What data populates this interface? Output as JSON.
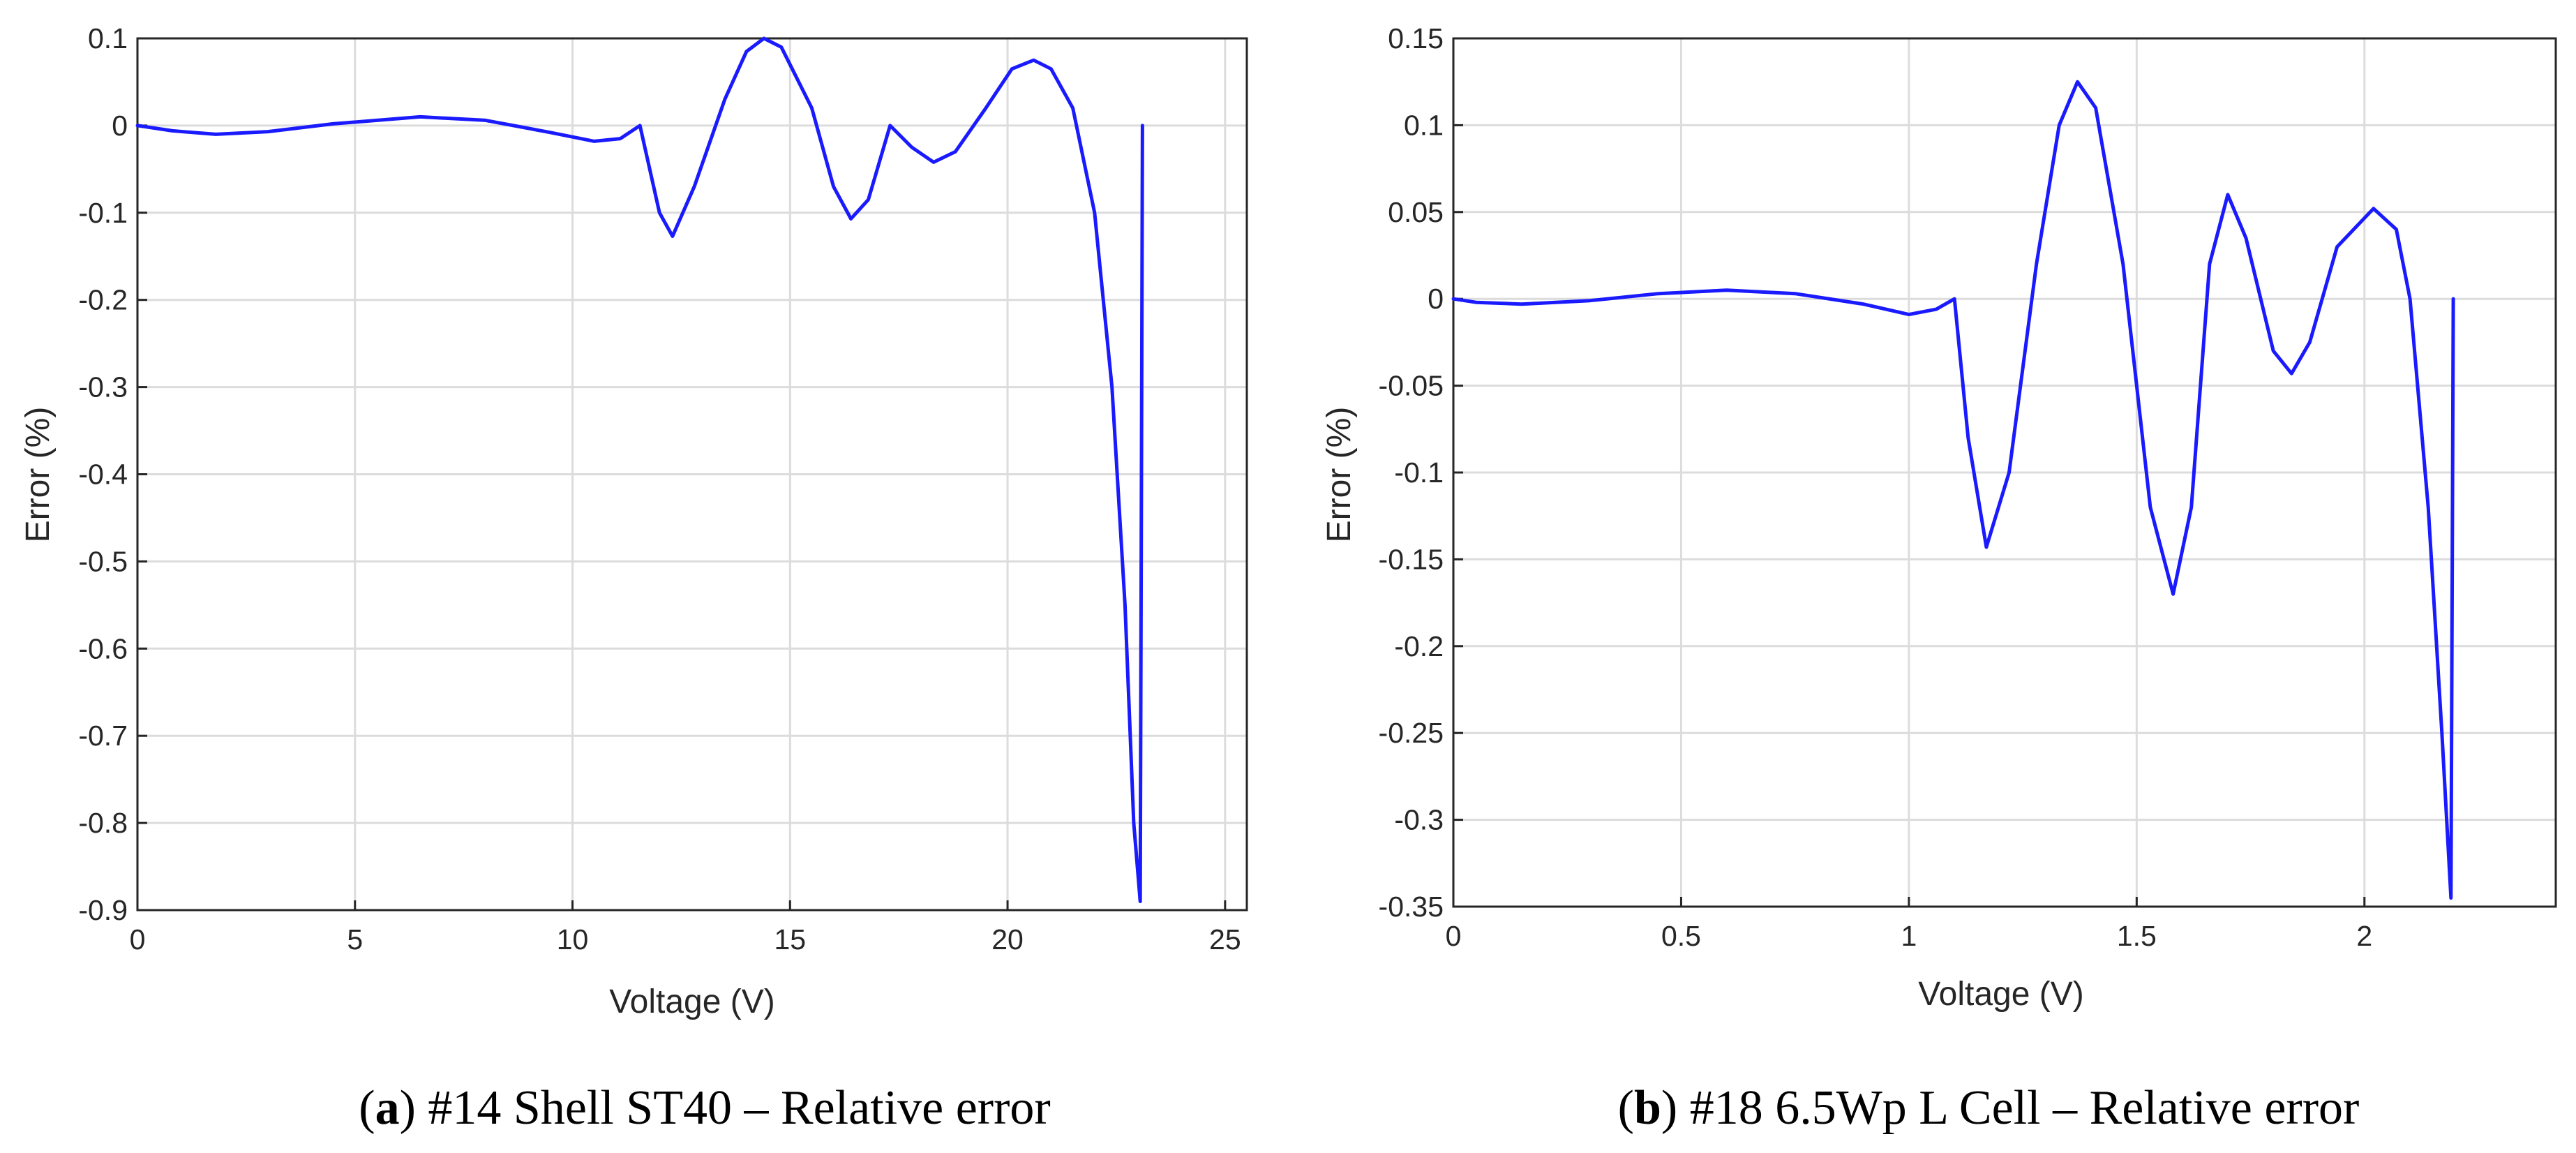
{
  "chart_data": [
    {
      "type": "line",
      "caption_letter": "a",
      "caption_text": "#14 Shell ST40 – Relative error",
      "xlabel": "Voltage (V)",
      "ylabel": "Error (%)",
      "xlim": [
        0,
        25.5
      ],
      "ylim": [
        -0.9,
        0.1
      ],
      "xticks": [
        0,
        5,
        10,
        15,
        20,
        25
      ],
      "xtick_labels": [
        "0",
        "5",
        "10",
        "15",
        "20",
        "25"
      ],
      "yticks": [
        0.1,
        0,
        -0.1,
        -0.2,
        -0.3,
        -0.4,
        -0.5,
        -0.6,
        -0.7,
        -0.8,
        -0.9
      ],
      "ytick_labels": [
        "0.1",
        "0",
        "-0.1",
        "-0.2",
        "-0.3",
        "-0.4",
        "-0.5",
        "-0.6",
        "-0.7",
        "-0.8",
        "-0.9"
      ],
      "grid": true,
      "line_color": "#1a1aff",
      "series": [
        {
          "name": "Relative error",
          "points": [
            [
              0,
              0
            ],
            [
              0.8,
              -0.006
            ],
            [
              1.8,
              -0.01
            ],
            [
              3,
              -0.007
            ],
            [
              4.5,
              0.002
            ],
            [
              6.5,
              0.01
            ],
            [
              8,
              0.006
            ],
            [
              9.5,
              -0.008
            ],
            [
              10.5,
              -0.018
            ],
            [
              11.1,
              -0.015
            ],
            [
              11.55,
              0
            ],
            [
              12,
              -0.1
            ],
            [
              12.3,
              -0.127
            ],
            [
              12.8,
              -0.07
            ],
            [
              13.5,
              0.03
            ],
            [
              14.0,
              0.085
            ],
            [
              14.4,
              0.1
            ],
            [
              14.8,
              0.09
            ],
            [
              15.5,
              0.02
            ],
            [
              16.0,
              -0.07
            ],
            [
              16.4,
              -0.107
            ],
            [
              16.8,
              -0.085
            ],
            [
              17.3,
              0
            ],
            [
              17.8,
              -0.025
            ],
            [
              18.3,
              -0.042
            ],
            [
              18.8,
              -0.03
            ],
            [
              19.5,
              0.02
            ],
            [
              20.1,
              0.065
            ],
            [
              20.6,
              0.075
            ],
            [
              21.0,
              0.065
            ],
            [
              21.5,
              0.02
            ],
            [
              22.0,
              -0.1
            ],
            [
              22.4,
              -0.3
            ],
            [
              22.7,
              -0.55
            ],
            [
              22.9,
              -0.8
            ],
            [
              23.05,
              -0.89
            ],
            [
              23.1,
              0
            ]
          ]
        }
      ]
    },
    {
      "type": "line",
      "caption_letter": "b",
      "caption_text": "#18 6.5Wp L Cell – Relative error",
      "xlabel": "Voltage (V)",
      "ylabel": "Error (%)",
      "xlim": [
        0,
        2.42
      ],
      "ylim": [
        -0.35,
        0.15
      ],
      "xticks": [
        0,
        0.5,
        1,
        1.5,
        2
      ],
      "xtick_labels": [
        "0",
        "0.5",
        "1",
        "1.5",
        "2"
      ],
      "yticks": [
        0.15,
        0.1,
        0.05,
        0,
        -0.05,
        -0.1,
        -0.15,
        -0.2,
        -0.25,
        -0.3,
        -0.35
      ],
      "ytick_labels": [
        "0.15",
        "0.1",
        "0.05",
        "0",
        "-0.05",
        "-0.1",
        "-0.15",
        "-0.2",
        "-0.25",
        "-0.3",
        "-0.35"
      ],
      "grid": true,
      "line_color": "#1a1aff",
      "series": [
        {
          "name": "Relative error",
          "points": [
            [
              0,
              0
            ],
            [
              0.05,
              -0.002
            ],
            [
              0.15,
              -0.003
            ],
            [
              0.3,
              -0.001
            ],
            [
              0.45,
              0.003
            ],
            [
              0.6,
              0.005
            ],
            [
              0.75,
              0.003
            ],
            [
              0.9,
              -0.003
            ],
            [
              1.0,
              -0.009
            ],
            [
              1.06,
              -0.006
            ],
            [
              1.1,
              0
            ],
            [
              1.13,
              -0.08
            ],
            [
              1.17,
              -0.143
            ],
            [
              1.22,
              -0.1
            ],
            [
              1.28,
              0.02
            ],
            [
              1.33,
              0.1
            ],
            [
              1.37,
              0.125
            ],
            [
              1.41,
              0.11
            ],
            [
              1.47,
              0.02
            ],
            [
              1.53,
              -0.12
            ],
            [
              1.58,
              -0.17
            ],
            [
              1.62,
              -0.12
            ],
            [
              1.66,
              0.02
            ],
            [
              1.7,
              0.06
            ],
            [
              1.74,
              0.035
            ],
            [
              1.8,
              -0.03
            ],
            [
              1.84,
              -0.043
            ],
            [
              1.88,
              -0.025
            ],
            [
              1.94,
              0.03
            ],
            [
              2.02,
              0.052
            ],
            [
              2.07,
              0.04
            ],
            [
              2.1,
              0
            ],
            [
              2.14,
              -0.12
            ],
            [
              2.17,
              -0.25
            ],
            [
              2.19,
              -0.345
            ],
            [
              2.195,
              0
            ]
          ]
        }
      ]
    }
  ]
}
